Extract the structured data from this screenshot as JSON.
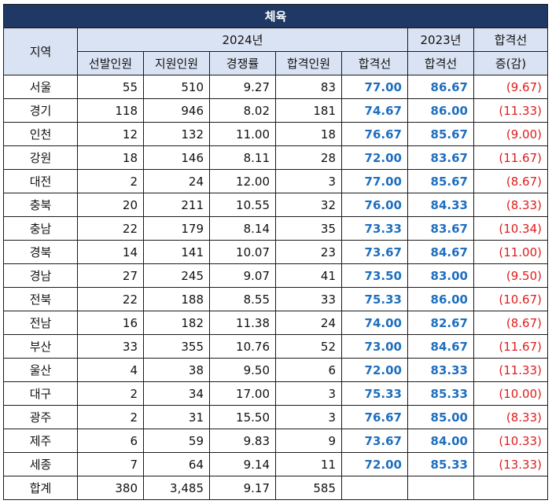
{
  "table": {
    "title": "체육",
    "headers": {
      "region": "지역",
      "year2024": "2024년",
      "selected": "선발인원",
      "applicants": "지원인원",
      "competition": "경쟁률",
      "passers": "합격인원",
      "cutoff2024": "합격선",
      "year2023": "2023년",
      "cutoff2023": "합격선",
      "change_line1": "합격선",
      "change_line2": "증(감)"
    },
    "rows": [
      {
        "region": "서울",
        "selected": "55",
        "applicants": "510",
        "competition": "9.27",
        "passers": "83",
        "cutoff2024": "77.00",
        "cutoff2023": "86.67",
        "change": "(9.67)"
      },
      {
        "region": "경기",
        "selected": "118",
        "applicants": "946",
        "competition": "8.02",
        "passers": "181",
        "cutoff2024": "74.67",
        "cutoff2023": "86.00",
        "change": "(11.33)"
      },
      {
        "region": "인천",
        "selected": "12",
        "applicants": "132",
        "competition": "11.00",
        "passers": "18",
        "cutoff2024": "76.67",
        "cutoff2023": "85.67",
        "change": "(9.00)"
      },
      {
        "region": "강원",
        "selected": "18",
        "applicants": "146",
        "competition": "8.11",
        "passers": "28",
        "cutoff2024": "72.00",
        "cutoff2023": "83.67",
        "change": "(11.67)"
      },
      {
        "region": "대전",
        "selected": "2",
        "applicants": "24",
        "competition": "12.00",
        "passers": "3",
        "cutoff2024": "77.00",
        "cutoff2023": "85.67",
        "change": "(8.67)"
      },
      {
        "region": "충북",
        "selected": "20",
        "applicants": "211",
        "competition": "10.55",
        "passers": "32",
        "cutoff2024": "76.00",
        "cutoff2023": "84.33",
        "change": "(8.33)"
      },
      {
        "region": "충남",
        "selected": "22",
        "applicants": "179",
        "competition": "8.14",
        "passers": "35",
        "cutoff2024": "73.33",
        "cutoff2023": "83.67",
        "change": "(10.34)"
      },
      {
        "region": "경북",
        "selected": "14",
        "applicants": "141",
        "competition": "10.07",
        "passers": "23",
        "cutoff2024": "73.67",
        "cutoff2023": "84.67",
        "change": "(11.00)"
      },
      {
        "region": "경남",
        "selected": "27",
        "applicants": "245",
        "competition": "9.07",
        "passers": "41",
        "cutoff2024": "73.50",
        "cutoff2023": "83.00",
        "change": "(9.50)"
      },
      {
        "region": "전북",
        "selected": "22",
        "applicants": "188",
        "competition": "8.55",
        "passers": "33",
        "cutoff2024": "75.33",
        "cutoff2023": "86.00",
        "change": "(10.67)"
      },
      {
        "region": "전남",
        "selected": "16",
        "applicants": "182",
        "competition": "11.38",
        "passers": "24",
        "cutoff2024": "74.00",
        "cutoff2023": "82.67",
        "change": "(8.67)"
      },
      {
        "region": "부산",
        "selected": "33",
        "applicants": "355",
        "competition": "10.76",
        "passers": "52",
        "cutoff2024": "73.00",
        "cutoff2023": "84.67",
        "change": "(11.67)"
      },
      {
        "region": "울산",
        "selected": "4",
        "applicants": "38",
        "competition": "9.50",
        "passers": "6",
        "cutoff2024": "72.00",
        "cutoff2023": "83.33",
        "change": "(11.33)"
      },
      {
        "region": "대구",
        "selected": "2",
        "applicants": "34",
        "competition": "17.00",
        "passers": "3",
        "cutoff2024": "75.33",
        "cutoff2023": "85.33",
        "change": "(10.00)"
      },
      {
        "region": "광주",
        "selected": "2",
        "applicants": "31",
        "competition": "15.50",
        "passers": "3",
        "cutoff2024": "76.67",
        "cutoff2023": "85.00",
        "change": "(8.33)"
      },
      {
        "region": "제주",
        "selected": "6",
        "applicants": "59",
        "competition": "9.83",
        "passers": "9",
        "cutoff2024": "73.67",
        "cutoff2023": "84.00",
        "change": "(10.33)"
      },
      {
        "region": "세종",
        "selected": "7",
        "applicants": "64",
        "competition": "9.14",
        "passers": "11",
        "cutoff2024": "72.00",
        "cutoff2023": "85.33",
        "change": "(13.33)"
      }
    ],
    "total": {
      "region": "합계",
      "selected": "380",
      "applicants": "3,485",
      "competition": "9.17",
      "passers": "585",
      "cutoff2024": "",
      "cutoff2023": "",
      "change": ""
    },
    "colors": {
      "title_bg": "#1f3864",
      "header_bg": "#dae3f3",
      "cutoff_text": "#1f6fbf",
      "change_text": "#e01c1c"
    }
  }
}
